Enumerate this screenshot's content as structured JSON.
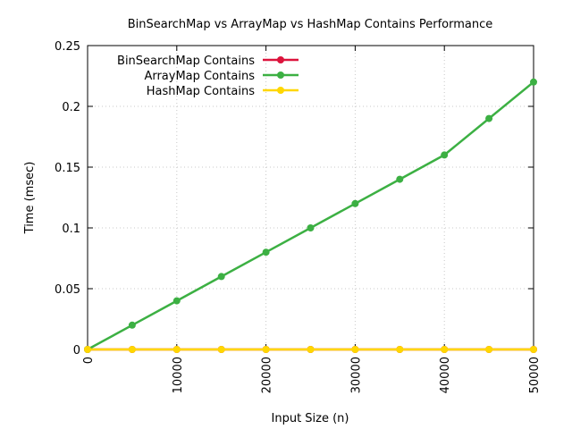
{
  "chart_data": {
    "type": "line",
    "title": "BinSearchMap vs ArrayMap vs HashMap Contains Performance",
    "xlabel": "Input Size (n)",
    "ylabel": "Time (msec)",
    "xlim": [
      0,
      50000
    ],
    "ylim": [
      0,
      0.25
    ],
    "x_ticks": [
      "0",
      "10000",
      "20000",
      "30000",
      "40000",
      "50000"
    ],
    "y_ticks": [
      "0",
      "0.05",
      "0.1",
      "0.15",
      "0.2",
      "0.25"
    ],
    "x_tick_values": [
      0,
      10000,
      20000,
      30000,
      40000,
      50000
    ],
    "y_tick_values": [
      0,
      0.05,
      0.1,
      0.15,
      0.2,
      0.25
    ],
    "grid": true,
    "legend_position": "top-left",
    "x": [
      0,
      5000,
      10000,
      15000,
      20000,
      25000,
      30000,
      35000,
      40000,
      45000,
      50000
    ],
    "series": [
      {
        "name": "BinSearchMap Contains",
        "color": "#dc143c",
        "values": [
          0,
          0,
          0,
          0,
          0,
          0,
          0,
          0,
          0,
          0,
          0
        ]
      },
      {
        "name": "ArrayMap Contains",
        "color": "#3cb043",
        "values": [
          0,
          0.02,
          0.04,
          0.06,
          0.08,
          0.1,
          0.12,
          0.14,
          0.16,
          0.19,
          0.22
        ]
      },
      {
        "name": "HashMap Contains",
        "color": "#ffd700",
        "values": [
          0,
          0,
          0,
          0,
          0,
          0,
          0,
          0,
          0,
          0,
          0
        ]
      }
    ]
  }
}
